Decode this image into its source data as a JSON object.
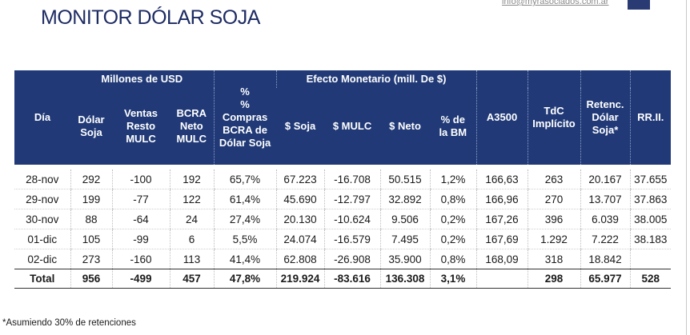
{
  "header": {
    "title": "MONITOR DÓLAR SOJA",
    "email": "info@myrasociados.com.ar"
  },
  "table": {
    "group_headers": {
      "millones": "Millones de USD",
      "efecto": "Efecto Monetario (mill. De $)"
    },
    "columns": {
      "dia": "Día",
      "dolar_soja": "Dólar Soja",
      "ventas": "Ventas Resto MULC",
      "bcra_neto": "BCRA Neto MULC",
      "pct_compras": "% Compras BCRA de Dólar Soja",
      "pct_top": "%",
      "soja": "$ Soja",
      "mulc": "$ MULC",
      "neto": "$ Neto",
      "pct_bm": "% de la BM",
      "a3500": "A3500",
      "tdc": "TdC Implícito",
      "retenc": "Retenc. Dólar Soja*",
      "rrii": "RR.II."
    },
    "rows": [
      [
        "28-nov",
        "292",
        "-100",
        "192",
        "65,7%",
        "67.223",
        "-16.708",
        "50.515",
        "1,2%",
        "166,63",
        "263",
        "20.167",
        "37.655"
      ],
      [
        "29-nov",
        "199",
        "-77",
        "122",
        "61,4%",
        "45.690",
        "-12.797",
        "32.892",
        "0,8%",
        "166,96",
        "270",
        "13.707",
        "37.863"
      ],
      [
        "30-nov",
        "88",
        "-64",
        "24",
        "27,4%",
        "20.130",
        "-10.624",
        "9.506",
        "0,2%",
        "167,26",
        "396",
        "6.039",
        "38.005"
      ],
      [
        "01-dic",
        "105",
        "-99",
        "6",
        "5,5%",
        "24.074",
        "-16.579",
        "7.495",
        "0,2%",
        "167,69",
        "1.292",
        "7.222",
        "38.183"
      ],
      [
        "02-dic",
        "273",
        "-160",
        "113",
        "41,4%",
        "62.808",
        "-26.908",
        "35.900",
        "0,8%",
        "168,09",
        "318",
        "18.842",
        ""
      ]
    ],
    "total": [
      "Total",
      "956",
      "-499",
      "457",
      "47,8%",
      "219.924",
      "-83.616",
      "136.308",
      "3,1%",
      "",
      "298",
      "65.977",
      "528"
    ]
  },
  "footnote": "*Asumiendo 30% de retenciones",
  "colors": {
    "header_bg": "#213a77",
    "title": "#1d2b63"
  }
}
